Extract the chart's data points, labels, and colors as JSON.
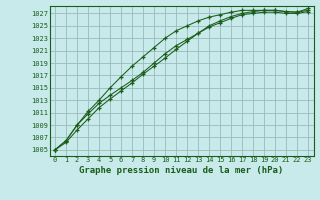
{
  "title": "Graphe pression niveau de la mer (hPa)",
  "bg_color": "#c8eaea",
  "grid_color": "#99bbbb",
  "line_color": "#1a5c1a",
  "x_ticks": [
    0,
    1,
    2,
    3,
    4,
    5,
    6,
    7,
    8,
    9,
    10,
    11,
    12,
    13,
    14,
    15,
    16,
    17,
    18,
    19,
    20,
    21,
    22,
    23
  ],
  "y_ticks": [
    1005,
    1007,
    1009,
    1011,
    1013,
    1015,
    1017,
    1019,
    1021,
    1023,
    1025,
    1027
  ],
  "ylim": [
    1004.0,
    1028.2
  ],
  "xlim": [
    -0.5,
    23.5
  ],
  "series": [
    [
      1005.0,
      1006.5,
      1009.0,
      1011.2,
      1013.0,
      1015.0,
      1016.8,
      1018.5,
      1020.0,
      1021.5,
      1023.0,
      1024.2,
      1025.0,
      1025.8,
      1026.4,
      1026.8,
      1027.2,
      1027.5,
      1027.5,
      1027.5,
      1027.5,
      1027.3,
      1027.2,
      1027.5
    ],
    [
      1005.0,
      1006.5,
      1009.0,
      1010.8,
      1012.5,
      1013.8,
      1015.0,
      1016.2,
      1017.5,
      1019.0,
      1020.5,
      1021.8,
      1022.8,
      1023.8,
      1024.8,
      1025.5,
      1026.2,
      1026.8,
      1027.0,
      1027.2,
      1027.2,
      1027.0,
      1027.0,
      1027.3
    ],
    [
      1005.0,
      1006.2,
      1008.2,
      1010.0,
      1011.8,
      1013.2,
      1014.5,
      1015.8,
      1017.2,
      1018.5,
      1019.8,
      1021.2,
      1022.5,
      1023.8,
      1025.0,
      1025.8,
      1026.5,
      1027.0,
      1027.3,
      1027.5,
      1027.5,
      1027.3,
      1027.2,
      1027.8
    ]
  ]
}
